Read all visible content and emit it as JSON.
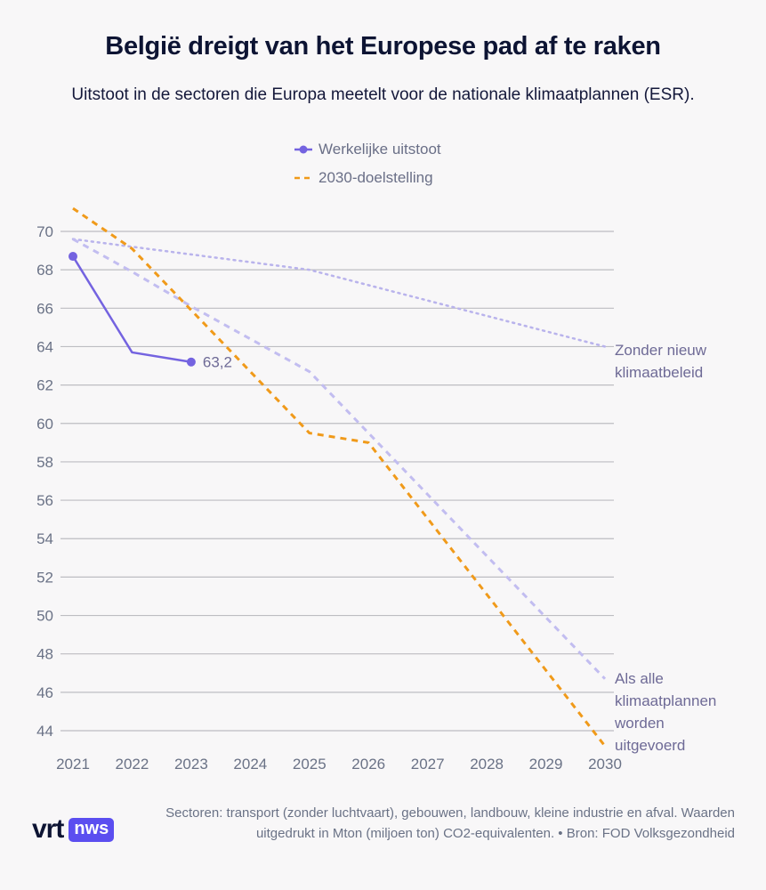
{
  "title": "België dreigt van het Europese pad af te raken",
  "subtitle": "Uitstoot in de sectoren die Europa meetelt voor de nationale klimaatplannen (ESR).",
  "legend": [
    {
      "label": "Werkelijke uitstoot",
      "color": "#7463e0",
      "style": "line-dot"
    },
    {
      "label": "2030-doelstelling",
      "color": "#f09a1a",
      "style": "dashed"
    }
  ],
  "footer": {
    "logo_vrt": "vrt",
    "logo_nws": "nws",
    "note": "Sectoren: transport (zonder luchtvaart), gebouwen, landbouw, kleine industrie en afval. Waarden uitgedrukt in Mton (miljoen ton) CO2-equivalenten. • Bron: FOD Volksgezondheid"
  },
  "chart_data": {
    "type": "line",
    "title": "België dreigt van het Europese pad af te raken",
    "xlabel": "",
    "ylabel": "",
    "x": [
      2021,
      2022,
      2023,
      2024,
      2025,
      2026,
      2027,
      2028,
      2029,
      2030
    ],
    "x_tick_labels": [
      "2021",
      "2022",
      "2023",
      "2024",
      "2025",
      "2026",
      "2027",
      "2028",
      "2029",
      "2030"
    ],
    "y_ticks": [
      44,
      46,
      48,
      50,
      52,
      54,
      56,
      58,
      60,
      62,
      64,
      66,
      68,
      70
    ],
    "y_tick_labels": [
      "44",
      "46",
      "48",
      "50",
      "52",
      "54",
      "56",
      "58",
      "60",
      "62",
      "64",
      "66",
      "68",
      "70"
    ],
    "xlim": [
      2021,
      2030
    ],
    "ylim": [
      43,
      71.5
    ],
    "grid": true,
    "legend_position": "top-center",
    "series": [
      {
        "name": "Zonder nieuw klimaatbeleid",
        "color": "#b9b3ec",
        "style": "dotted",
        "points": [
          [
            2021,
            69.6
          ],
          [
            2025,
            68.0
          ],
          [
            2030,
            64.0
          ]
        ],
        "end_label": [
          "Zonder nieuw",
          "klimaatbeleid"
        ]
      },
      {
        "name": "Als alle klimaatplannen worden uitgevoerd",
        "color": "#c2bdf0",
        "style": "dashed",
        "points": [
          [
            2021,
            69.6
          ],
          [
            2022,
            67.9
          ],
          [
            2023,
            66.1
          ],
          [
            2024,
            64.4
          ],
          [
            2025,
            62.7
          ],
          [
            2026,
            59.5
          ],
          [
            2027,
            56.3
          ],
          [
            2028,
            53.1
          ],
          [
            2029,
            49.9
          ],
          [
            2030,
            46.7
          ]
        ],
        "end_label": [
          "Als alle",
          "klimaatplannen",
          "worden",
          "uitgevoerd"
        ]
      },
      {
        "name": "2030-doelstelling",
        "color": "#f09a1a",
        "style": "dashed",
        "points": [
          [
            2021,
            71.2
          ],
          [
            2022,
            69.1
          ],
          [
            2023,
            65.9
          ],
          [
            2024,
            62.7
          ],
          [
            2025,
            59.5
          ],
          [
            2026,
            59.0
          ],
          [
            2027,
            55.05
          ],
          [
            2028,
            51.1
          ],
          [
            2029,
            47.15
          ],
          [
            2030,
            43.2
          ]
        ]
      },
      {
        "name": "Werkelijke uitstoot",
        "color": "#7463e0",
        "style": "solid",
        "points": [
          [
            2021,
            68.7
          ],
          [
            2022,
            63.7
          ],
          [
            2023,
            63.2
          ]
        ],
        "markers": [
          2021,
          2023
        ],
        "data_label": {
          "x": 2023,
          "text": "63,2"
        }
      }
    ]
  }
}
